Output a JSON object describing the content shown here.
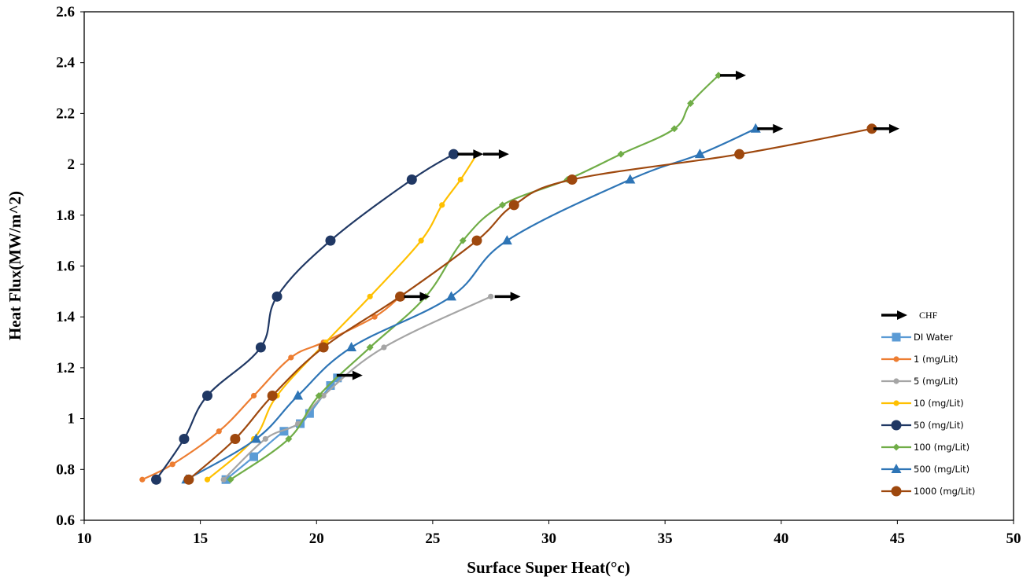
{
  "chart_data": {
    "type": "line",
    "xlabel": "Surface Super Heat(°c)",
    "ylabel": "Heat Flux(MW/m^2)",
    "xlim": [
      10,
      50
    ],
    "ylim": [
      0.6,
      2.6
    ],
    "x_ticks": [
      "10",
      "15",
      "20",
      "25",
      "30",
      "35",
      "40",
      "45",
      "50"
    ],
    "y_ticks": [
      "0.6",
      "0.8",
      "1",
      "1.2",
      "1.4",
      "1.6",
      "1.8",
      "2",
      "2.2",
      "2.4",
      "2.6"
    ],
    "grid": false,
    "legend_position": "right",
    "chf_label": "CHF",
    "series": [
      {
        "name": "DI Water",
        "color": "#5b9bd5",
        "marker": "square",
        "x": [
          16.1,
          17.3,
          18.6,
          19.3,
          19.7,
          20.6,
          20.9
        ],
        "y": [
          0.76,
          0.85,
          0.95,
          0.98,
          1.02,
          1.13,
          1.16
        ]
      },
      {
        "name": "1 (mg/Lit)",
        "color": "#ed7d31",
        "marker": "circle-small",
        "x": [
          12.5,
          13.8,
          15.8,
          17.3,
          18.9,
          20.3,
          22.5,
          23.6
        ],
        "y": [
          0.76,
          0.82,
          0.95,
          1.09,
          1.24,
          1.3,
          1.4,
          1.48
        ]
      },
      {
        "name": "5 (mg/Lit)",
        "color": "#a5a5a5",
        "marker": "circle-small",
        "x": [
          16.0,
          17.8,
          19.2,
          20.3,
          22.9,
          27.5
        ],
        "y": [
          0.76,
          0.92,
          0.98,
          1.09,
          1.28,
          1.48
        ]
      },
      {
        "name": "10 (mg/Lit)",
        "color": "#ffc000",
        "marker": "circle-small",
        "x": [
          15.3,
          17.3,
          18.3,
          20.4,
          22.3,
          24.5,
          25.4,
          26.2,
          26.9
        ],
        "y": [
          0.76,
          0.92,
          1.09,
          1.3,
          1.48,
          1.7,
          1.84,
          1.94,
          2.04
        ]
      },
      {
        "name": "50 (mg/Lit)",
        "color": "#203864",
        "marker": "circle",
        "x": [
          13.1,
          14.3,
          15.3,
          17.6,
          18.3,
          20.6,
          24.1,
          25.9
        ],
        "y": [
          0.76,
          0.92,
          1.09,
          1.28,
          1.48,
          1.7,
          1.94,
          2.04
        ]
      },
      {
        "name": "100 (mg/Lit)",
        "color": "#70ad47",
        "marker": "diamond",
        "x": [
          16.3,
          18.8,
          20.1,
          22.3,
          24.7,
          26.3,
          28.0,
          30.8,
          33.1,
          35.4,
          36.1,
          37.3
        ],
        "y": [
          0.76,
          0.92,
          1.09,
          1.28,
          1.48,
          1.7,
          1.84,
          1.94,
          2.04,
          2.14,
          2.24,
          2.35
        ]
      },
      {
        "name": "500 (mg/Lit)",
        "color": "#2e75b6",
        "marker": "triangle",
        "x": [
          14.4,
          17.4,
          19.2,
          21.5,
          25.8,
          28.2,
          33.5,
          36.5,
          38.9
        ],
        "y": [
          0.76,
          0.92,
          1.09,
          1.28,
          1.48,
          1.7,
          1.94,
          2.04,
          2.14
        ]
      },
      {
        "name": "1000 (mg/Lit)",
        "color": "#9e480e",
        "marker": "circle",
        "x": [
          14.5,
          16.5,
          18.1,
          20.3,
          23.6,
          26.9,
          28.5,
          31.0,
          38.2,
          43.9
        ],
        "y": [
          0.76,
          0.92,
          1.09,
          1.28,
          1.48,
          1.7,
          1.84,
          1.94,
          2.04,
          2.14
        ]
      }
    ],
    "chf_points": [
      {
        "x": 26.0,
        "y": 2.04
      },
      {
        "x": 27.1,
        "y": 2.04
      },
      {
        "x": 37.3,
        "y": 2.35
      },
      {
        "x": 38.9,
        "y": 2.14
      },
      {
        "x": 43.9,
        "y": 2.14
      },
      {
        "x": 23.7,
        "y": 1.48
      },
      {
        "x": 27.6,
        "y": 1.48
      },
      {
        "x": 20.8,
        "y": 1.17
      }
    ]
  }
}
